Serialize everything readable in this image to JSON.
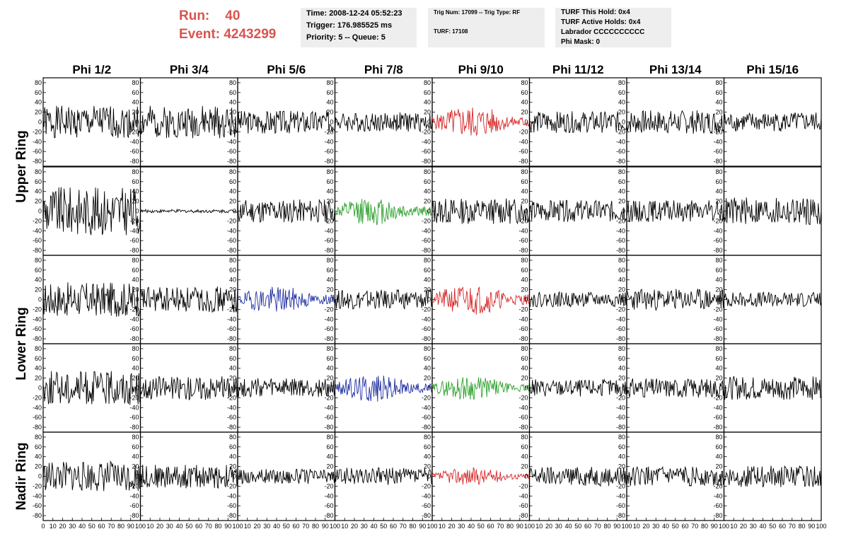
{
  "header": {
    "run_label": "Run:",
    "run_value": "40",
    "event_label": "Event:",
    "event_value": "4243299",
    "time": "Time: 2008-12-24 05:52:23",
    "trigger": "Trigger: 176.985525 ms",
    "priority": "Priority: 5 -- Queue: 5",
    "trig_num": "Trig Num: 17099 -- Trig Type: RF",
    "turf": "TURF: 17108",
    "turf_hold": "TURF This Hold: 0x4",
    "turf_active": "TURF Active Holds: 0x4",
    "labrador": "Labrador CCCCCCCCCC",
    "phi_mask": "Phi Mask: 0"
  },
  "chart_data": {
    "type": "line",
    "columns": [
      "Phi 1/2",
      "Phi 3/4",
      "Phi 5/6",
      "Phi 7/8",
      "Phi 9/10",
      "Phi 11/12",
      "Phi 13/14",
      "Phi 15/16"
    ],
    "rows": [
      "Upper Ring",
      "Lower Ring",
      "Nadir Ring"
    ],
    "ylim": [
      -90,
      90
    ],
    "yticks": [
      80,
      60,
      40,
      20,
      0,
      -20,
      -40,
      -60,
      -80
    ],
    "xlim": [
      0,
      100
    ],
    "xticks": [
      0,
      10,
      20,
      30,
      40,
      50,
      60,
      70,
      80,
      90,
      100
    ],
    "colors": {
      "default": "#000000",
      "red": "#d62728",
      "green": "#2ca02c",
      "blue": "#1f2fa0"
    },
    "panels": [
      [
        {
          "c": "default",
          "a": 30,
          "seed": 1
        },
        {
          "c": "default",
          "a": 30,
          "seed": 2
        },
        {
          "c": "default",
          "a": 22,
          "seed": 3
        },
        {
          "c": "default",
          "a": 18,
          "seed": 4
        },
        {
          "c": "red",
          "a": 30,
          "seed": 5
        },
        {
          "c": "default",
          "a": 20,
          "seed": 6
        },
        {
          "c": "default",
          "a": 22,
          "seed": 7
        },
        {
          "c": "default",
          "a": 18,
          "seed": 8
        }
      ],
      [
        {
          "c": "default",
          "a": 45,
          "seed": 9
        },
        {
          "c": "default",
          "a": 3,
          "seed": 10
        },
        {
          "c": "default",
          "a": 22,
          "seed": 11
        },
        {
          "c": "green",
          "a": 26,
          "seed": 12
        },
        {
          "c": "default",
          "a": 24,
          "seed": 13
        },
        {
          "c": "default",
          "a": 20,
          "seed": 14
        },
        {
          "c": "default",
          "a": 20,
          "seed": 15
        },
        {
          "c": "default",
          "a": 26,
          "seed": 16
        }
      ],
      [
        {
          "c": "default",
          "a": 32,
          "seed": 17
        },
        {
          "c": "default",
          "a": 24,
          "seed": 18
        },
        {
          "c": "blue",
          "a": 25,
          "seed": 19
        },
        {
          "c": "default",
          "a": 18,
          "seed": 20
        },
        {
          "c": "red",
          "a": 28,
          "seed": 21
        },
        {
          "c": "default",
          "a": 14,
          "seed": 22
        },
        {
          "c": "default",
          "a": 20,
          "seed": 23
        },
        {
          "c": "default",
          "a": 14,
          "seed": 24
        }
      ],
      [
        {
          "c": "default",
          "a": 32,
          "seed": 25
        },
        {
          "c": "default",
          "a": 22,
          "seed": 26
        },
        {
          "c": "default",
          "a": 18,
          "seed": 27
        },
        {
          "c": "blue",
          "a": 26,
          "seed": 28
        },
        {
          "c": "green",
          "a": 22,
          "seed": 29
        },
        {
          "c": "default",
          "a": 16,
          "seed": 30
        },
        {
          "c": "default",
          "a": 18,
          "seed": 31
        },
        {
          "c": "default",
          "a": 22,
          "seed": 32
        }
      ],
      [
        {
          "c": "default",
          "a": 28,
          "seed": 33
        },
        {
          "c": "default",
          "a": 22,
          "seed": 34
        },
        {
          "c": "default",
          "a": 14,
          "seed": 35
        },
        {
          "c": "default",
          "a": 16,
          "seed": 36
        },
        {
          "c": "red",
          "a": 16,
          "seed": 37
        },
        {
          "c": "default",
          "a": 18,
          "seed": 38
        },
        {
          "c": "default",
          "a": 18,
          "seed": 39
        },
        {
          "c": "default",
          "a": 20,
          "seed": 40
        }
      ]
    ]
  }
}
